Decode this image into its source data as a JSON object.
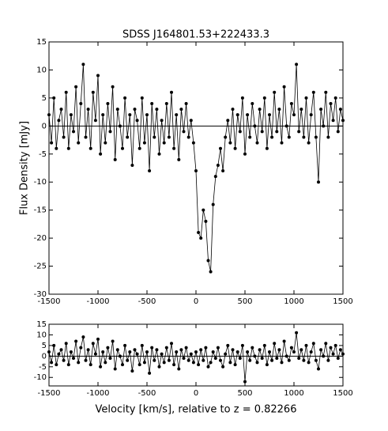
{
  "chart_data": [
    {
      "type": "line",
      "title": "SDSS J164801.53+222433.3",
      "y_label": "Flux Density [mJy]",
      "x": [
        -1500,
        -1475,
        -1450,
        -1425,
        -1400,
        -1375,
        -1350,
        -1325,
        -1300,
        -1275,
        -1250,
        -1225,
        -1200,
        -1175,
        -1150,
        -1125,
        -1100,
        -1075,
        -1050,
        -1025,
        -1000,
        -975,
        -950,
        -925,
        -900,
        -875,
        -850,
        -825,
        -800,
        -775,
        -750,
        -725,
        -700,
        -675,
        -650,
        -625,
        -600,
        -575,
        -550,
        -525,
        -500,
        -475,
        -450,
        -425,
        -400,
        -375,
        -350,
        -325,
        -300,
        -275,
        -250,
        -225,
        -200,
        -175,
        -150,
        -125,
        -100,
        -75,
        -50,
        -25,
        0,
        25,
        50,
        75,
        100,
        125,
        150,
        175,
        200,
        225,
        250,
        275,
        300,
        325,
        350,
        375,
        400,
        425,
        450,
        475,
        500,
        525,
        550,
        575,
        600,
        625,
        650,
        675,
        700,
        725,
        750,
        775,
        800,
        825,
        850,
        875,
        900,
        925,
        950,
        975,
        1000,
        1025,
        1050,
        1075,
        1100,
        1125,
        1150,
        1175,
        1200,
        1225,
        1250,
        1275,
        1300,
        1325,
        1350,
        1375,
        1400,
        1425,
        1450,
        1475,
        1500
      ],
      "series": [
        {
          "color": "#000000",
          "values": [
            2,
            -3,
            5,
            -4,
            1,
            3,
            -2,
            6,
            -4,
            2,
            -1,
            7,
            -3,
            4,
            11,
            -2,
            3,
            -4,
            6,
            1,
            9,
            -5,
            2,
            -3,
            4,
            -1,
            7,
            -6,
            3,
            0,
            -4,
            5,
            -2,
            2,
            -7,
            3,
            1,
            -4,
            5,
            -3,
            2,
            -8,
            4,
            -2,
            3,
            -5,
            1,
            -3,
            4,
            -2,
            6,
            -4,
            2,
            -6,
            3,
            -1,
            4,
            -2,
            1,
            -3,
            -8,
            -19,
            -20,
            -15,
            -17,
            -24,
            -26,
            -14,
            -9,
            -7,
            -4,
            -8,
            -2,
            1,
            -3,
            3,
            -4,
            2,
            -1,
            5,
            -5,
            2,
            -2,
            4,
            0,
            -3,
            3,
            -1,
            5,
            -4,
            2,
            -2,
            6,
            -1,
            3,
            -3,
            7,
            0,
            -2,
            4,
            2,
            11,
            -1,
            3,
            -2,
            5,
            -3,
            2,
            6,
            -2,
            -10,
            3,
            0,
            6,
            -2,
            4,
            1,
            5,
            -1,
            3,
            1
          ]
        }
      ],
      "hline": 0,
      "xlim": [
        -1500,
        1500
      ],
      "xticks": [
        -1500,
        -1000,
        -500,
        0,
        500,
        1000,
        1500
      ],
      "ylim": [
        -30,
        15
      ],
      "yticks": [
        -30,
        -25,
        -20,
        -15,
        -10,
        -5,
        0,
        5,
        10,
        15
      ]
    },
    {
      "type": "line",
      "x_label": "Velocity [km/s], relative to z = 0.82266",
      "x": [
        -1500,
        -1475,
        -1450,
        -1425,
        -1400,
        -1375,
        -1350,
        -1325,
        -1300,
        -1275,
        -1250,
        -1225,
        -1200,
        -1175,
        -1150,
        -1125,
        -1100,
        -1075,
        -1050,
        -1025,
        -1000,
        -975,
        -950,
        -925,
        -900,
        -875,
        -850,
        -825,
        -800,
        -775,
        -750,
        -725,
        -700,
        -675,
        -650,
        -625,
        -600,
        -575,
        -550,
        -525,
        -500,
        -475,
        -450,
        -425,
        -400,
        -375,
        -350,
        -325,
        -300,
        -275,
        -250,
        -225,
        -200,
        -175,
        -150,
        -125,
        -100,
        -75,
        -50,
        -25,
        0,
        25,
        50,
        75,
        100,
        125,
        150,
        175,
        200,
        225,
        250,
        275,
        300,
        325,
        350,
        375,
        400,
        425,
        450,
        475,
        500,
        525,
        550,
        575,
        600,
        625,
        650,
        675,
        700,
        725,
        750,
        775,
        800,
        825,
        850,
        875,
        900,
        925,
        950,
        975,
        1000,
        1025,
        1050,
        1075,
        1100,
        1125,
        1150,
        1175,
        1200,
        1225,
        1250,
        1275,
        1300,
        1325,
        1350,
        1375,
        1400,
        1425,
        1450,
        1475,
        1500
      ],
      "series": [
        {
          "color": "#000000",
          "values": [
            2,
            -3,
            5,
            -4,
            1,
            3,
            -2,
            6,
            -4,
            2,
            -1,
            7,
            -3,
            4,
            9,
            -2,
            3,
            -4,
            6,
            1,
            8,
            -5,
            2,
            -3,
            4,
            -1,
            7,
            -6,
            3,
            0,
            -4,
            5,
            -2,
            2,
            -7,
            3,
            1,
            -4,
            5,
            -3,
            2,
            -8,
            4,
            -2,
            3,
            -5,
            1,
            -3,
            4,
            -2,
            6,
            -4,
            2,
            -6,
            3,
            -1,
            4,
            -2,
            1,
            -3,
            2,
            -4,
            3,
            -2,
            4,
            -5,
            -3,
            2,
            -1,
            4,
            -2,
            -5,
            1,
            5,
            -3,
            3,
            -4,
            2,
            -1,
            5,
            -12,
            2,
            -2,
            4,
            0,
            -3,
            3,
            -1,
            5,
            -4,
            2,
            -2,
            6,
            -1,
            3,
            -3,
            7,
            0,
            -2,
            4,
            2,
            11,
            -1,
            3,
            -2,
            5,
            -3,
            2,
            6,
            -2,
            -6,
            3,
            0,
            6,
            -2,
            4,
            1,
            5,
            -1,
            3,
            1
          ]
        }
      ],
      "hline": 0,
      "xlim": [
        -1500,
        1500
      ],
      "xticks": [
        -1500,
        -1000,
        -500,
        0,
        500,
        1000,
        1500
      ],
      "ylim": [
        -14,
        15
      ],
      "yticks": [
        -10,
        -5,
        0,
        5,
        10,
        15
      ]
    }
  ]
}
